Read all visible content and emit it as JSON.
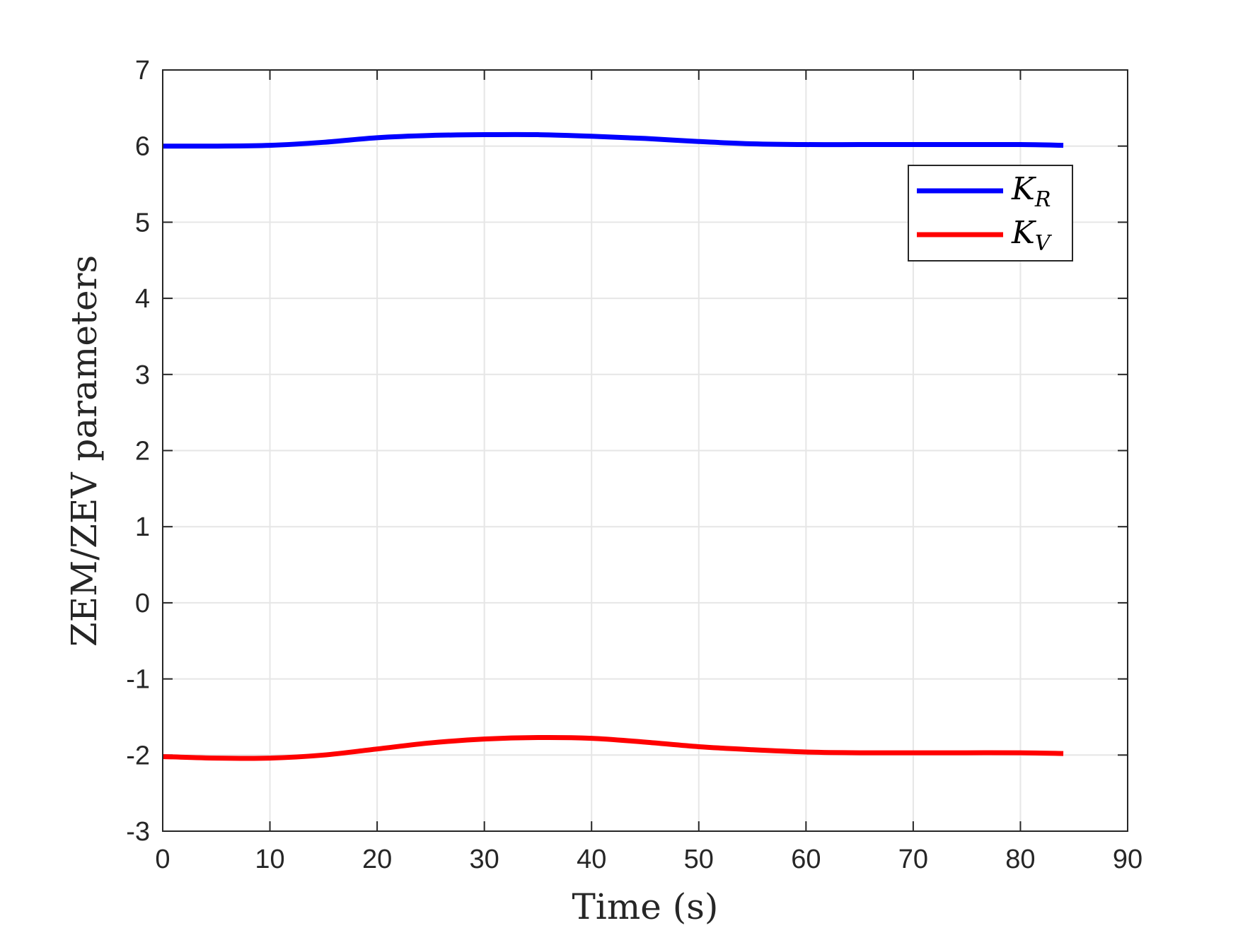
{
  "chart_data": {
    "type": "line",
    "title": "",
    "xlabel": "Time (s)",
    "ylabel": "ZEM/ZEV parameters",
    "xlim": [
      0,
      90
    ],
    "ylim": [
      -3,
      7
    ],
    "xticks": [
      "0",
      "10",
      "20",
      "30",
      "40",
      "50",
      "60",
      "70",
      "80",
      "90"
    ],
    "yticks": [
      "-3",
      "-2",
      "-1",
      "0",
      "1",
      "2",
      "3",
      "4",
      "5",
      "6",
      "7"
    ],
    "grid": true,
    "legend_position": "top-right",
    "series": [
      {
        "name": "K",
        "subscript": "R",
        "color": "#0000ff",
        "x": [
          0,
          5,
          10,
          15,
          20,
          25,
          30,
          35,
          40,
          45,
          50,
          55,
          60,
          65,
          70,
          75,
          80,
          84
        ],
        "y": [
          6.0,
          6.0,
          6.01,
          6.05,
          6.11,
          6.14,
          6.15,
          6.15,
          6.13,
          6.1,
          6.06,
          6.03,
          6.02,
          6.02,
          6.02,
          6.02,
          6.02,
          6.01
        ]
      },
      {
        "name": "K",
        "subscript": "V",
        "color": "#ff0000",
        "x": [
          0,
          5,
          10,
          15,
          20,
          25,
          30,
          35,
          40,
          45,
          50,
          55,
          60,
          65,
          70,
          75,
          80,
          84
        ],
        "y": [
          -2.02,
          -2.04,
          -2.04,
          -2.0,
          -1.92,
          -1.84,
          -1.79,
          -1.77,
          -1.78,
          -1.83,
          -1.89,
          -1.93,
          -1.96,
          -1.97,
          -1.97,
          -1.97,
          -1.97,
          -1.98
        ]
      }
    ]
  }
}
